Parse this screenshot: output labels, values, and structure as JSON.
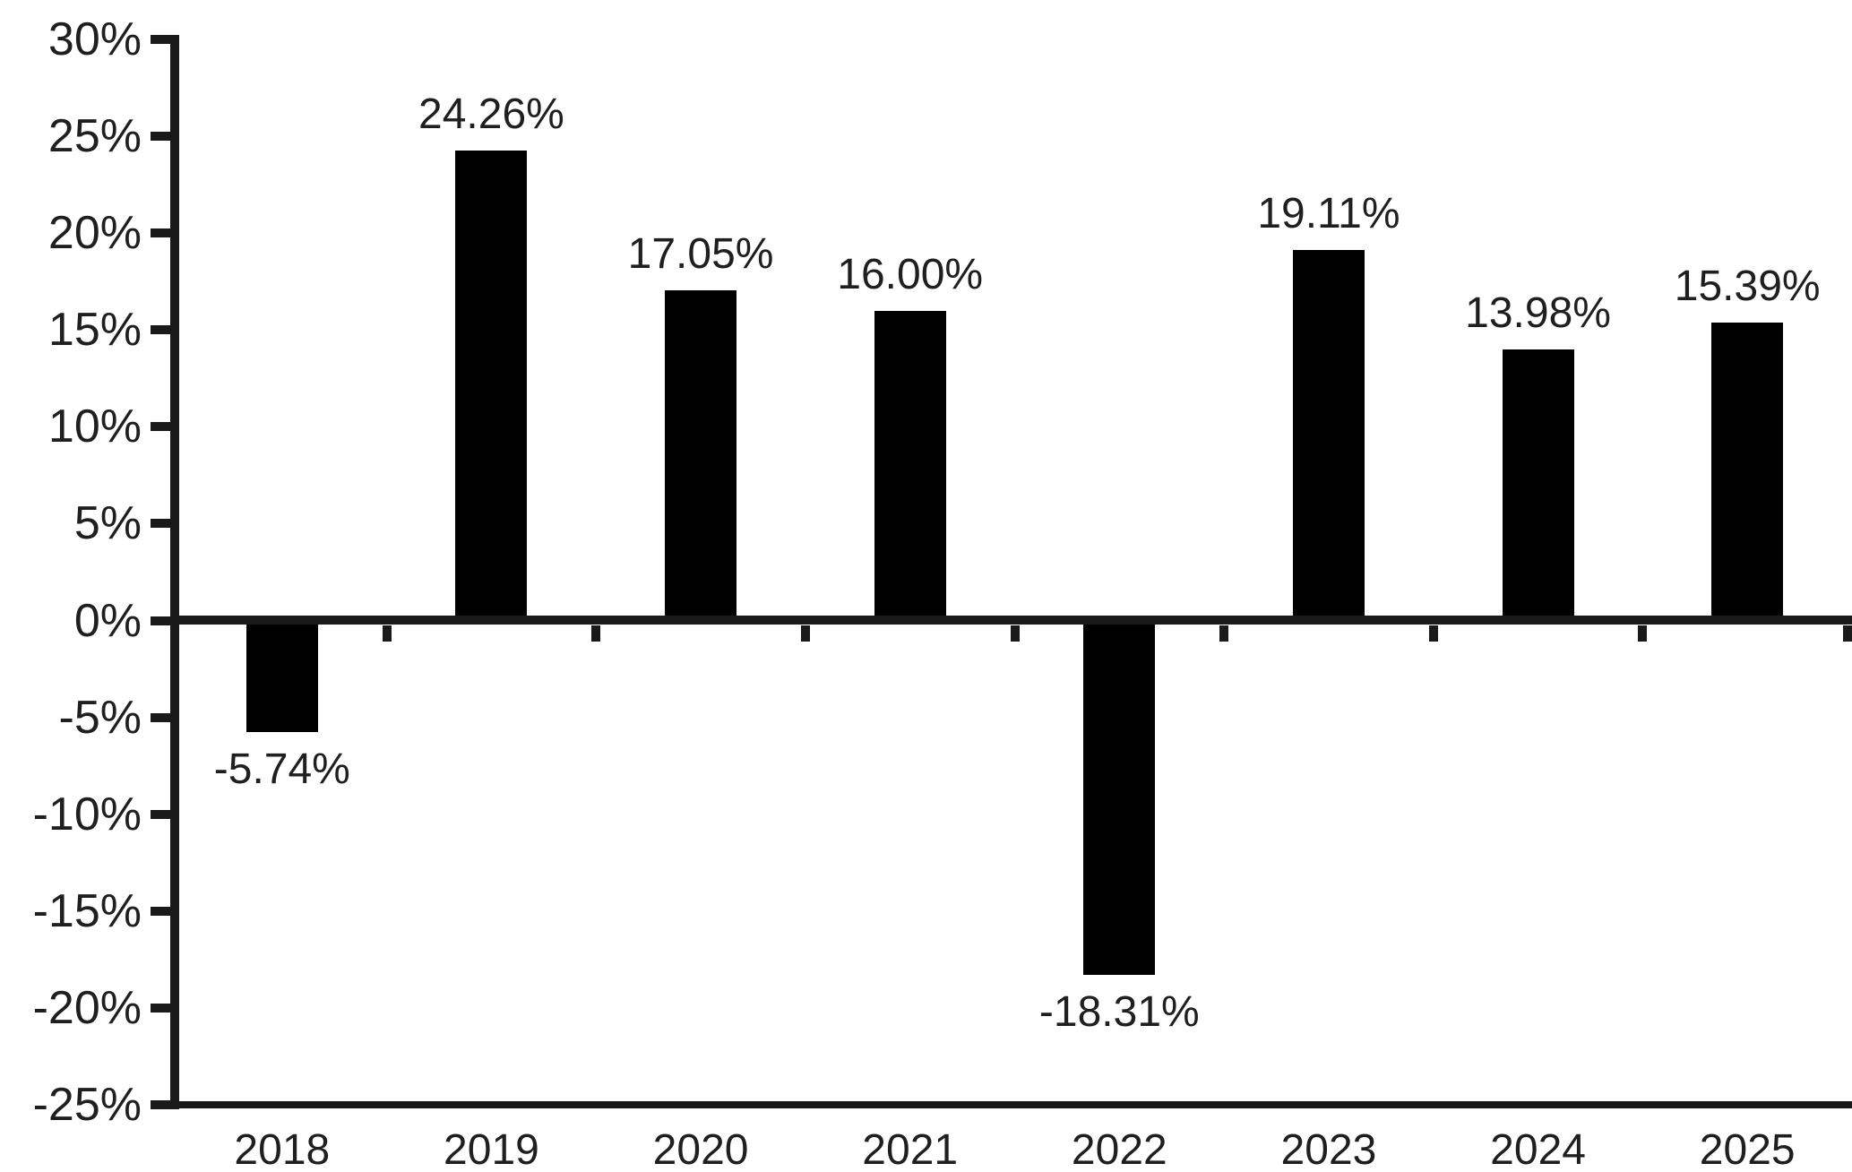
{
  "chart_data": {
    "type": "bar",
    "title": "",
    "categories": [
      "2018",
      "2019",
      "2020",
      "2021",
      "2022",
      "2023",
      "2024",
      "2025"
    ],
    "values": [
      -5.74,
      24.26,
      17.05,
      16.0,
      -18.31,
      19.11,
      13.98,
      15.39
    ],
    "bar_labels": [
      "-5.74%",
      "24.26%",
      "17.05%",
      "16.00%",
      "-18.31%",
      "19.11%",
      "13.98%",
      "15.39%"
    ],
    "xlabel": "",
    "ylabel": "",
    "ylim": [
      -25,
      30
    ],
    "y_tick_step": 5,
    "y_tick_labels": [
      "30%",
      "25%",
      "20%",
      "15%",
      "10%",
      "5%",
      "0%",
      "-5%",
      "-10%",
      "-15%",
      "-20%",
      "-25%"
    ],
    "grid": false,
    "legend": "none"
  },
  "colors": {
    "bar": "#000000",
    "axis": "#1a1a1a",
    "text": "#1f1f1f",
    "background": "#ffffff"
  }
}
